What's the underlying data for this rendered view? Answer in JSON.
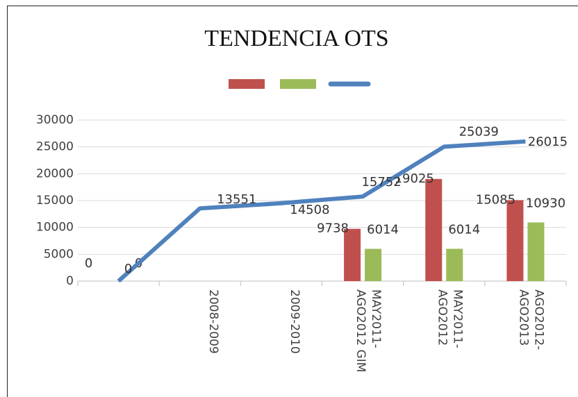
{
  "chart_data": {
    "type": "bar-line",
    "title": "TENDENCIA OTS",
    "categories": [
      null,
      "2008-2009",
      "2009-2010",
      "MAY2011-AGO2012 GIM",
      "MAY2011-AGO2012",
      "AGO2012-AGO2013"
    ],
    "series": [
      {
        "type": "bar",
        "color": "#c0504d",
        "values": [
          0,
          null,
          null,
          9738,
          19025,
          15085
        ]
      },
      {
        "type": "bar",
        "color": "#9bbb59",
        "values": [
          0,
          null,
          null,
          6014,
          6014,
          10930
        ]
      },
      {
        "type": "line",
        "color": "#4f81bd",
        "values": [
          0,
          13551,
          14508,
          15752,
          25039,
          26015
        ]
      }
    ],
    "ylim": [
      0,
      30000
    ],
    "yticks": [
      0,
      5000,
      10000,
      15000,
      20000,
      25000,
      30000
    ],
    "grid": true,
    "legend": "top"
  }
}
